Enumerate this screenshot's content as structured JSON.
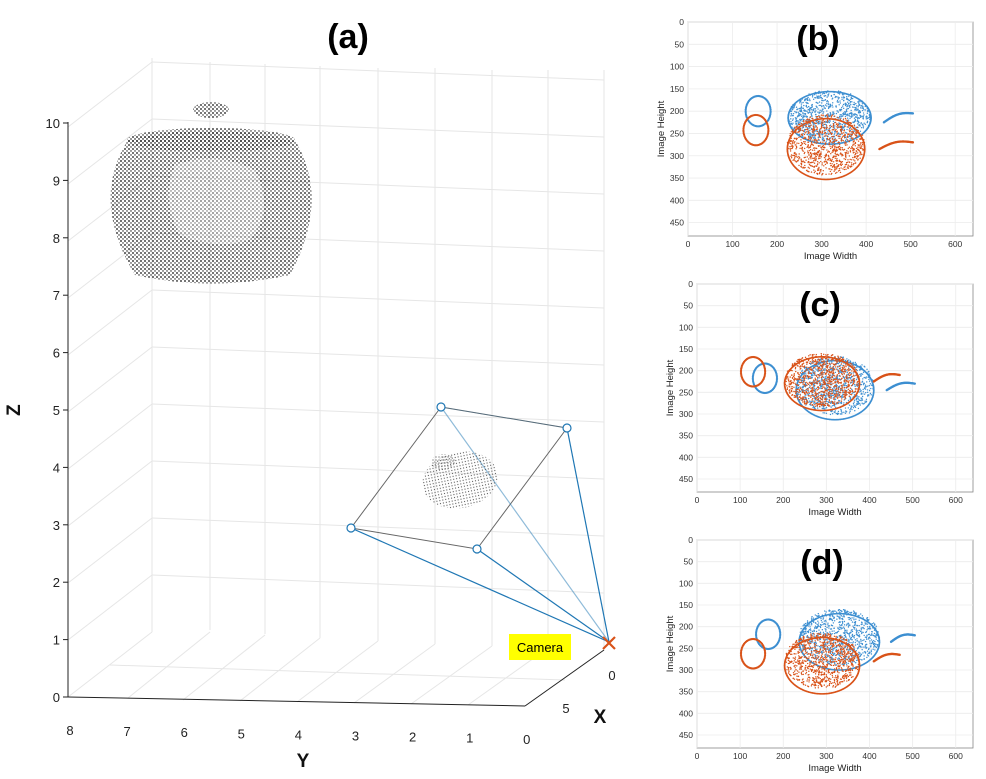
{
  "figure": {
    "main_label": "(a)",
    "subplot_labels": [
      "(b)",
      "(c)",
      "(d)"
    ],
    "camera_label": "Camera"
  },
  "colors": {
    "point_cloud": "#111111",
    "frustum": "#1f77b4",
    "camera_marker": "#d95319",
    "highlight": "#ffff00",
    "series_blue": "#3d8fd1",
    "series_orange": "#d95319",
    "grid": "#e6e6e6"
  },
  "chart_data": [
    {
      "id": "a",
      "type": "scatter3d",
      "title": "(a)",
      "xlabel": "X",
      "ylabel": "Y",
      "zlabel": "Z",
      "xticks": [
        "0",
        "5"
      ],
      "yticks": [
        "8",
        "7",
        "6",
        "5",
        "4",
        "3",
        "2",
        "1",
        "0"
      ],
      "zticks": [
        "0",
        "1",
        "2",
        "3",
        "4",
        "5",
        "6",
        "7",
        "8",
        "9",
        "10"
      ],
      "zlim": [
        0,
        10
      ],
      "ylim": [
        0,
        8
      ],
      "grid": true,
      "series": [],
      "annotations": [
        "Camera"
      ]
    },
    {
      "id": "b",
      "type": "scatter",
      "title": "(b)",
      "xlabel": "Image Width",
      "ylabel": "Image Height",
      "xlim": [
        0,
        640
      ],
      "ylim": [
        480,
        0
      ],
      "xticks": [
        "0",
        "100",
        "200",
        "300",
        "400",
        "500",
        "600"
      ],
      "yticks": [
        "0",
        "50",
        "100",
        "150",
        "200",
        "250",
        "300",
        "350",
        "400",
        "450"
      ],
      "grid": true,
      "series": [
        {
          "color": "#3d8fd1",
          "body_cx": 318,
          "body_cy": 215,
          "body_rx": 150,
          "body_ry": 95,
          "lid_cy": 195,
          "lid_ry": 62,
          "spout": [
            [
              440,
              225
            ],
            [
              505,
              205
            ]
          ],
          "handle": [
            [
              175,
              195
            ],
            [
              140,
              205
            ]
          ]
        },
        {
          "color": "#d95319",
          "body_cx": 310,
          "body_cy": 285,
          "body_rx": 140,
          "body_ry": 110,
          "lid_cy": 220,
          "lid_ry": 80,
          "spout": [
            [
              430,
              285
            ],
            [
              505,
              270
            ]
          ],
          "handle": [
            [
              170,
              235
            ],
            [
              135,
              250
            ]
          ]
        }
      ]
    },
    {
      "id": "c",
      "type": "scatter",
      "title": "(c)",
      "xlabel": "Image Width",
      "ylabel": "Image Height",
      "xlim": [
        0,
        640
      ],
      "ylim": [
        480,
        0
      ],
      "xticks": [
        "0",
        "100",
        "200",
        "300",
        "400",
        "500",
        "600"
      ],
      "yticks": [
        "0",
        "50",
        "100",
        "150",
        "200",
        "250",
        "300",
        "350",
        "400",
        "450"
      ],
      "grid": true,
      "series": [
        {
          "color": "#3d8fd1",
          "body_cx": 320,
          "body_cy": 245,
          "body_rx": 145,
          "body_ry": 110,
          "lid_cy": 175,
          "lid_ry": 55,
          "spout": [
            [
              440,
              245
            ],
            [
              505,
              230
            ]
          ],
          "handle": [
            [
              175,
              210
            ],
            [
              140,
              225
            ]
          ]
        },
        {
          "color": "#d95319",
          "body_cx": 290,
          "body_cy": 230,
          "body_rx": 140,
          "body_ry": 100,
          "lid_cy": 175,
          "lid_ry": 50,
          "spout": [
            [
              410,
              225
            ],
            [
              470,
              210
            ]
          ],
          "handle": [
            [
              150,
              195
            ],
            [
              110,
              210
            ]
          ]
        }
      ]
    },
    {
      "id": "d",
      "type": "scatter",
      "title": "(d)",
      "xlabel": "Image Width",
      "ylabel": "Image Height",
      "xlim": [
        0,
        640
      ],
      "ylim": [
        480,
        0
      ],
      "xticks": [
        "0",
        "100",
        "200",
        "300",
        "400",
        "500",
        "600"
      ],
      "yticks": [
        "0",
        "50",
        "100",
        "150",
        "200",
        "250",
        "300",
        "350",
        "400",
        "450"
      ],
      "grid": true,
      "series": [
        {
          "color": "#3d8fd1",
          "body_cx": 330,
          "body_cy": 235,
          "body_rx": 150,
          "body_ry": 105,
          "lid_cy": 165,
          "lid_ry": 55,
          "spout": [
            [
              450,
              235
            ],
            [
              505,
              220
            ]
          ],
          "handle": [
            [
              185,
              210
            ],
            [
              145,
              225
            ]
          ]
        },
        {
          "color": "#d95319",
          "body_cx": 290,
          "body_cy": 290,
          "body_rx": 140,
          "body_ry": 105,
          "lid_cy": 215,
          "lid_ry": 65,
          "spout": [
            [
              410,
              280
            ],
            [
              470,
              265
            ]
          ],
          "handle": [
            [
              150,
              255
            ],
            [
              110,
              270
            ]
          ]
        }
      ]
    }
  ]
}
